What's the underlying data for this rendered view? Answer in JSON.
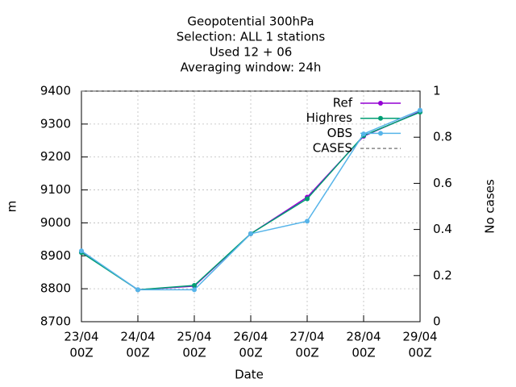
{
  "chart_data": {
    "type": "line",
    "title": [
      "Geopotential 300hPa",
      "Selection: ALL      1 stations",
      "Used  12 + 06",
      "Averaging window: 24h"
    ],
    "xlabel": "Date",
    "ylabel": "m",
    "y2label": "No cases",
    "categories": [
      [
        "23/04",
        "00Z"
      ],
      [
        "24/04",
        "00Z"
      ],
      [
        "25/04",
        "00Z"
      ],
      [
        "26/04",
        "00Z"
      ],
      [
        "27/04",
        "00Z"
      ],
      [
        "28/04",
        "00Z"
      ],
      [
        "29/04",
        "00Z"
      ]
    ],
    "series": [
      {
        "name": "Ref",
        "color": "#9400d3",
        "values": [
          8912,
          8797,
          8808,
          8967,
          9078,
          9263,
          9338
        ]
      },
      {
        "name": "Highres",
        "color": "#009e73",
        "values": [
          8910,
          8797,
          8810,
          8967,
          9073,
          9265,
          9336
        ]
      },
      {
        "name": "OBS",
        "color": "#56b4e9",
        "values": [
          8915,
          8797,
          8797,
          8967,
          9005,
          9270,
          9342
        ]
      },
      {
        "name": "CASES",
        "color": "#888888",
        "axis": "y2",
        "dashed": true,
        "values": [
          1,
          1,
          1,
          1,
          1,
          1,
          1
        ]
      }
    ],
    "ylim": [
      8700,
      9400
    ],
    "yticks": [
      8700,
      8800,
      8900,
      9000,
      9100,
      9200,
      9300,
      9400
    ],
    "y2lim": [
      0,
      1
    ],
    "y2ticks": [
      0,
      0.2,
      0.4,
      0.6,
      0.8,
      1
    ],
    "grid": true,
    "legend": "top-right"
  }
}
